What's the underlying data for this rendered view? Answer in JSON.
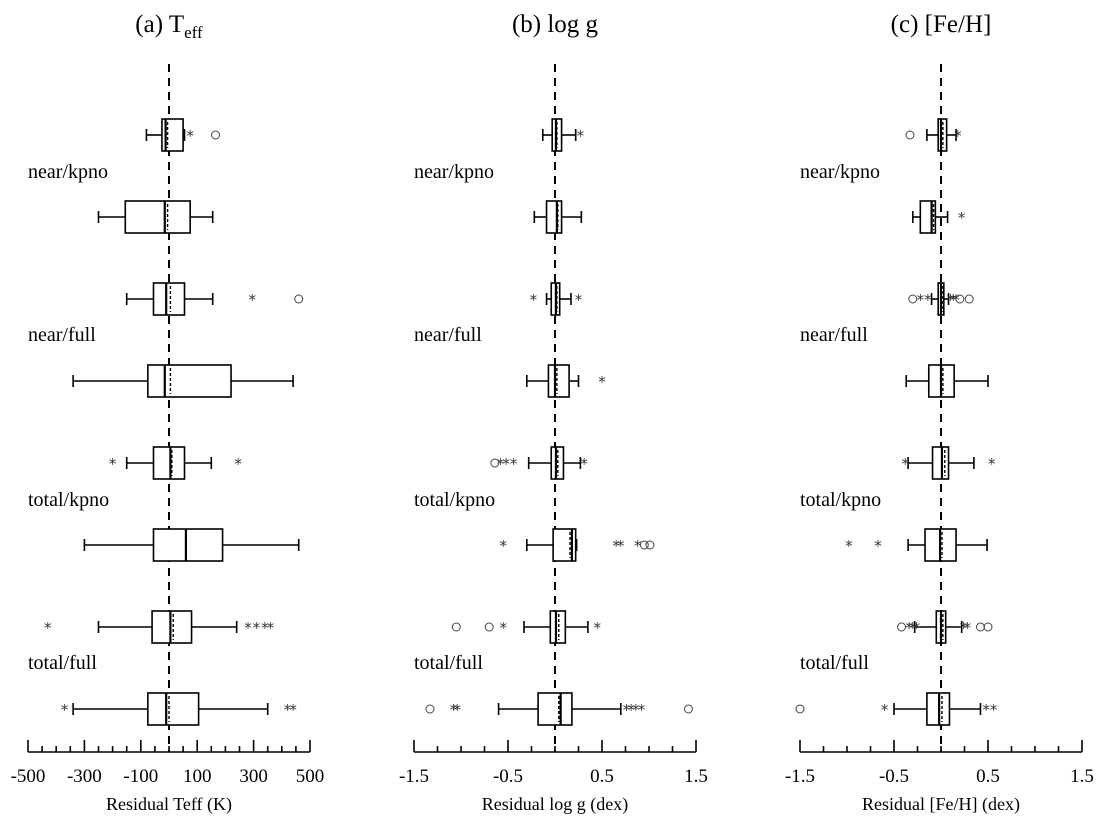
{
  "chart_data": [
    {
      "type": "boxplot",
      "title_main": "(a) T",
      "title_sub": "eff",
      "xlabel": "Residual Teff (K)",
      "xlim": [
        -500,
        500
      ],
      "ticks": [
        -500,
        -300,
        -100,
        100,
        300,
        500
      ],
      "group_labels": [
        "near/kpno",
        "near/full",
        "total/kpno",
        "total/full"
      ],
      "rows": [
        {
          "wlo": -80,
          "q1": -25,
          "med": -12,
          "mean": -5,
          "q3": 50,
          "whi": 55,
          "stars": [
            75
          ],
          "circles": [
            165
          ]
        },
        {
          "wlo": -250,
          "q1": -155,
          "med": -15,
          "mean": -5,
          "q3": 75,
          "whi": 155,
          "stars": [],
          "circles": []
        },
        {
          "wlo": -150,
          "q1": -55,
          "med": -10,
          "mean": 5,
          "q3": 55,
          "whi": 155,
          "stars": [
            295
          ],
          "circles": [
            460
          ]
        },
        {
          "wlo": -340,
          "q1": -75,
          "med": -15,
          "mean": 5,
          "q3": 220,
          "whi": 440,
          "stars": [],
          "circles": []
        },
        {
          "wlo": -150,
          "q1": -55,
          "med": 5,
          "mean": 10,
          "q3": 55,
          "whi": 150,
          "stars": [
            -200,
            245
          ],
          "circles": []
        },
        {
          "wlo": -300,
          "q1": -55,
          "med": 60,
          "mean": 60,
          "q3": 190,
          "whi": 460,
          "stars": [],
          "circles": []
        },
        {
          "wlo": -250,
          "q1": -60,
          "med": 5,
          "mean": 15,
          "q3": 80,
          "whi": 240,
          "stars": [
            -430,
            280,
            310,
            340,
            360
          ],
          "circles": []
        },
        {
          "wlo": -340,
          "q1": -75,
          "med": -10,
          "mean": 0,
          "q3": 105,
          "whi": 350,
          "stars": [
            -370,
            420,
            440
          ],
          "circles": []
        }
      ]
    },
    {
      "type": "boxplot",
      "title_main": "(b) log g",
      "title_sub": "",
      "xlabel": "Residual log g (dex)",
      "xlim": [
        -1.5,
        1.5
      ],
      "ticks": [
        -1.5,
        -0.5,
        0.5,
        1.5
      ],
      "group_labels": [
        "near/kpno",
        "near/full",
        "total/kpno",
        "total/full"
      ],
      "rows": [
        {
          "wlo": -0.13,
          "q1": -0.03,
          "med": 0.01,
          "mean": 0.02,
          "q3": 0.07,
          "whi": 0.22,
          "stars": [
            0.27
          ],
          "circles": []
        },
        {
          "wlo": -0.22,
          "q1": -0.09,
          "med": 0.02,
          "mean": 0.03,
          "q3": 0.07,
          "whi": 0.28,
          "stars": [],
          "circles": []
        },
        {
          "wlo": -0.09,
          "q1": -0.04,
          "med": 0.01,
          "mean": 0.02,
          "q3": 0.05,
          "whi": 0.17,
          "stars": [
            -0.23,
            0.25
          ],
          "circles": []
        },
        {
          "wlo": -0.3,
          "q1": -0.07,
          "med": 0.0,
          "mean": 0.02,
          "q3": 0.15,
          "whi": 0.25,
          "stars": [
            0.5
          ],
          "circles": []
        },
        {
          "wlo": -0.28,
          "q1": -0.04,
          "med": 0.01,
          "mean": 0.03,
          "q3": 0.09,
          "whi": 0.27,
          "stars": [
            -0.58,
            -0.52,
            -0.44,
            0.31
          ],
          "circles": [
            -0.64
          ]
        },
        {
          "wlo": -0.3,
          "q1": -0.02,
          "med": 0.18,
          "mean": 0.16,
          "q3": 0.22,
          "whi": 0.23,
          "stars": [
            -0.55,
            0.65,
            0.7,
            0.88
          ],
          "circles": [
            0.95,
            1.01
          ]
        },
        {
          "wlo": -0.33,
          "q1": -0.05,
          "med": 0.01,
          "mean": 0.04,
          "q3": 0.11,
          "whi": 0.35,
          "stars": [
            -0.55,
            0.45
          ],
          "circles": [
            -1.05,
            -0.7
          ]
        },
        {
          "wlo": -0.6,
          "q1": -0.18,
          "med": 0.06,
          "mean": 0.04,
          "q3": 0.18,
          "whi": 0.7,
          "stars": [
            -1.08,
            -1.04,
            0.76,
            0.81,
            0.86,
            0.92
          ],
          "circles": [
            -1.33,
            1.42
          ]
        }
      ]
    },
    {
      "type": "boxplot",
      "title_main": "(c) [Fe/H]",
      "title_sub": "",
      "xlabel": "Residual [Fe/H] (dex)",
      "xlim": [
        -1.5,
        1.5
      ],
      "ticks": [
        -1.5,
        -0.5,
        0.5,
        1.5
      ],
      "group_labels": [
        "near/kpno",
        "near/full",
        "total/kpno",
        "total/full"
      ],
      "rows": [
        {
          "wlo": -0.15,
          "q1": -0.03,
          "med": 0.0,
          "mean": 0.02,
          "q3": 0.06,
          "whi": 0.16,
          "stars": [
            0.18
          ],
          "circles": [
            -0.33
          ]
        },
        {
          "wlo": -0.3,
          "q1": -0.22,
          "med": -0.1,
          "mean": -0.08,
          "q3": -0.06,
          "whi": 0.07,
          "stars": [
            0.22
          ],
          "circles": []
        },
        {
          "wlo": -0.1,
          "q1": -0.03,
          "med": 0.0,
          "mean": 0.02,
          "q3": 0.03,
          "whi": 0.08,
          "stars": [
            -0.22,
            -0.14,
            0.1,
            0.13,
            0.16
          ],
          "circles": [
            -0.3,
            0.2,
            0.3
          ]
        },
        {
          "wlo": -0.37,
          "q1": -0.13,
          "med": 0.0,
          "mean": 0.02,
          "q3": 0.14,
          "whi": 0.5,
          "stars": [],
          "circles": []
        },
        {
          "wlo": -0.35,
          "q1": -0.09,
          "med": 0.01,
          "mean": 0.04,
          "q3": 0.08,
          "whi": 0.35,
          "stars": [
            -0.38,
            0.54
          ],
          "circles": []
        },
        {
          "wlo": -0.35,
          "q1": -0.17,
          "med": -0.01,
          "mean": 0.01,
          "q3": 0.16,
          "whi": 0.49,
          "stars": [
            -0.98,
            -0.67
          ],
          "circles": []
        },
        {
          "wlo": -0.28,
          "q1": -0.05,
          "med": 0.0,
          "mean": 0.02,
          "q3": 0.05,
          "whi": 0.22,
          "stars": [
            -0.34,
            -0.3,
            -0.26,
            0.24,
            0.28
          ],
          "circles": [
            -0.42,
            0.42,
            0.5
          ]
        },
        {
          "wlo": -0.5,
          "q1": -0.15,
          "med": -0.02,
          "mean": 0.01,
          "q3": 0.09,
          "whi": 0.42,
          "stars": [
            -0.6,
            0.48,
            0.56
          ],
          "circles": [
            -1.5
          ]
        }
      ]
    }
  ]
}
